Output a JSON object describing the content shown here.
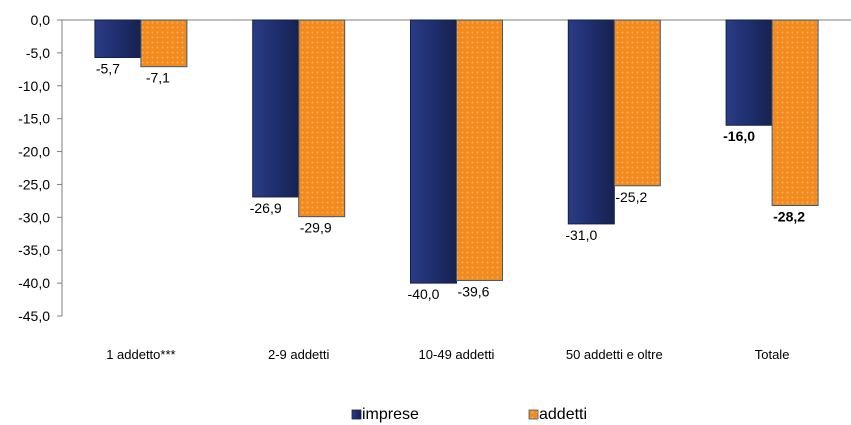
{
  "chart_data": {
    "type": "bar",
    "categories": [
      "1 addetto***",
      "2-9 addetti",
      "10-49 addetti",
      "50  addetti e oltre",
      "Totale"
    ],
    "series": [
      {
        "name": "imprese",
        "values": [
          -5.7,
          -26.9,
          -40.0,
          -31.0,
          -16.0
        ],
        "labels": [
          "-5,7",
          "-26,9",
          "-40,0",
          "-31,0",
          "-16,0"
        ],
        "color": "#1f2e6e"
      },
      {
        "name": "addetti",
        "values": [
          -7.1,
          -29.9,
          -39.6,
          -25.2,
          -28.2
        ],
        "labels": [
          "-7,1",
          "-29,9",
          "-39,6",
          "-25,2",
          "-28,2"
        ],
        "color": "#f28a1e"
      }
    ],
    "bold_category": "Totale",
    "ylim": [
      -45,
      0
    ],
    "ytick_step": 5,
    "yticks": [
      "0,0",
      "-5,0",
      "-10,0",
      "-15,0",
      "-20,0",
      "-25,0",
      "-30,0",
      "-35,0",
      "-40,0",
      "-45,0"
    ],
    "title": "",
    "xlabel": "",
    "ylabel": "",
    "grid": false,
    "legend_position": "bottom"
  }
}
